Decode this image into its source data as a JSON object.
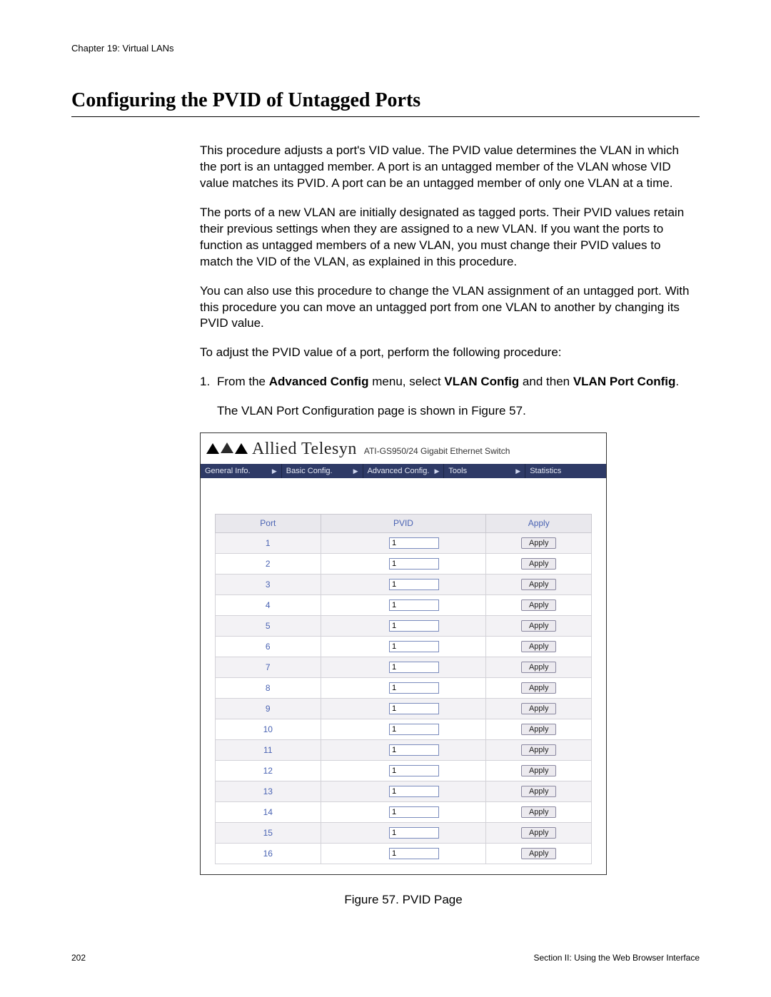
{
  "chapter_header": "Chapter 19: Virtual LANs",
  "section_title": "Configuring the PVID of Untagged Ports",
  "paragraphs": {
    "p1": "This procedure adjusts a port's VID value. The PVID value determines the VLAN in which the port is an untagged member. A port is an untagged member of the VLAN whose VID value matches its PVID. A port can be an untagged member of only one VLAN at a time.",
    "p2": "The ports of a new VLAN are initially designated as tagged ports. Their PVID values retain their previous settings when they are assigned to a new VLAN. If you want the ports to function as untagged members of a new VLAN, you must change their PVID values to match the VID of the VLAN, as explained in this procedure.",
    "p3": "You can also use this procedure to change the VLAN assignment of an untagged port. With this procedure you can move an untagged port from one VLAN to another by changing its PVID value.",
    "p4": "To adjust the PVID value of a port, perform the following procedure:"
  },
  "step1": {
    "num": "1.",
    "pre": "From the ",
    "b1": "Advanced Config",
    "mid1": " menu, select ",
    "b2": "VLAN Config",
    "mid2": " and then ",
    "b3": "VLAN Port Config",
    "post": "."
  },
  "step1_followup": "The VLAN Port Configuration page is shown in Figure 57.",
  "switch_ui": {
    "brand": "Allied Telesyn",
    "model": "ATI-GS950/24 Gigabit Ethernet Switch",
    "menu": [
      "General Info.",
      "Basic Config.",
      "Advanced Config.",
      "Tools",
      "Statistics"
    ],
    "columns": {
      "port": "Port",
      "pvid": "PVID",
      "apply": "Apply"
    },
    "apply_button_label": "Apply",
    "rows": [
      {
        "port": "1",
        "pvid": "1"
      },
      {
        "port": "2",
        "pvid": "1"
      },
      {
        "port": "3",
        "pvid": "1"
      },
      {
        "port": "4",
        "pvid": "1"
      },
      {
        "port": "5",
        "pvid": "1"
      },
      {
        "port": "6",
        "pvid": "1"
      },
      {
        "port": "7",
        "pvid": "1"
      },
      {
        "port": "8",
        "pvid": "1"
      },
      {
        "port": "9",
        "pvid": "1"
      },
      {
        "port": "10",
        "pvid": "1"
      },
      {
        "port": "11",
        "pvid": "1"
      },
      {
        "port": "12",
        "pvid": "1"
      },
      {
        "port": "13",
        "pvid": "1"
      },
      {
        "port": "14",
        "pvid": "1"
      },
      {
        "port": "15",
        "pvid": "1"
      },
      {
        "port": "16",
        "pvid": "1"
      }
    ]
  },
  "figure_caption": "Figure 57. PVID Page",
  "footer": {
    "page_number": "202",
    "section_label": "Section II: Using the Web Browser Interface"
  },
  "colors": {
    "menubar_bg": "#2e3a66",
    "header_link": "#4a63b3",
    "row_alt": "#f3f2f5",
    "border": "#c9c8cf"
  }
}
